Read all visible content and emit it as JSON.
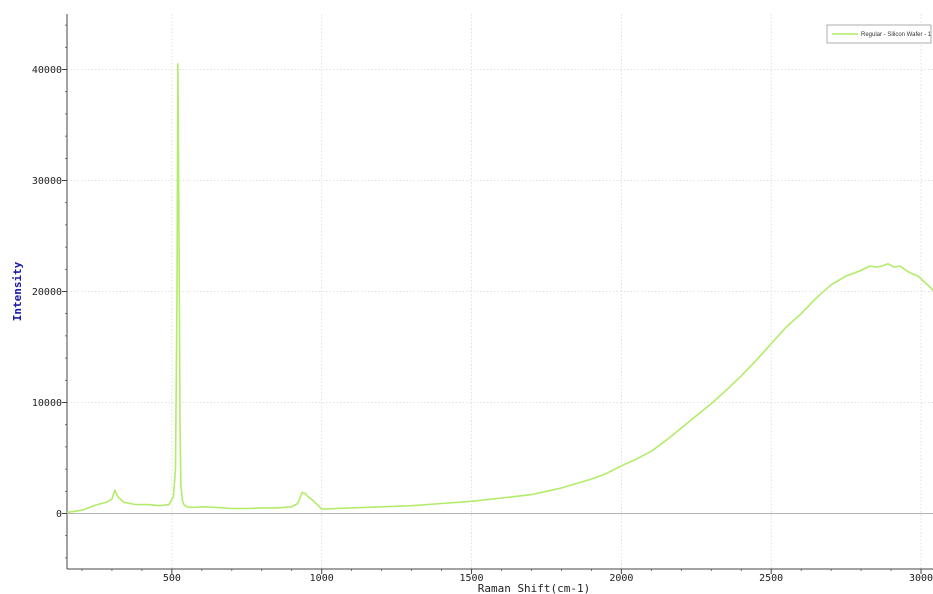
{
  "chart_data": {
    "type": "line",
    "xlabel": "Raman Shift(cm-1)",
    "ylabel": "Intensity",
    "xlim": [
      150,
      3040
    ],
    "ylim": [
      -5000,
      45000
    ],
    "x_ticks": [
      500,
      1000,
      1500,
      2000,
      2500,
      3000
    ],
    "y_ticks": [
      0,
      10000,
      20000,
      30000,
      40000
    ],
    "x_tick_labels": [
      "500",
      "1000",
      "1500",
      "2000",
      "2500",
      "3000"
    ],
    "y_tick_labels": [
      "0",
      "10000",
      "20000",
      "30000",
      "40000"
    ],
    "grid": "horizontal dotted",
    "zero_line": true,
    "legend_position": "top-right",
    "colors": {
      "series": "#b2ec6a",
      "ylabel": "#1a1aa6",
      "grid": "#d8d8d8",
      "axis": "#444444"
    },
    "series": [
      {
        "name": "Regular - Silicon Wafer - 1",
        "x": [
          150,
          200,
          250,
          280,
          300,
          310,
          320,
          340,
          380,
          420,
          460,
          490,
          505,
          512,
          517,
          520,
          523,
          527,
          530,
          535,
          540,
          550,
          570,
          600,
          650,
          700,
          750,
          800,
          850,
          900,
          920,
          935,
          945,
          955,
          970,
          985,
          1000,
          1020,
          1050,
          1100,
          1200,
          1300,
          1400,
          1500,
          1600,
          1700,
          1750,
          1800,
          1850,
          1900,
          1950,
          2000,
          2050,
          2100,
          2150,
          2200,
          2250,
          2300,
          2350,
          2400,
          2450,
          2500,
          2550,
          2600,
          2650,
          2700,
          2750,
          2780,
          2800,
          2830,
          2850,
          2870,
          2890,
          2910,
          2930,
          2950,
          2970,
          2990,
          3010,
          3030,
          3040
        ],
        "y": [
          100,
          300,
          800,
          1000,
          1300,
          2100,
          1500,
          1000,
          800,
          800,
          700,
          800,
          1500,
          4000,
          20000,
          40500,
          28000,
          8000,
          2500,
          1200,
          800,
          600,
          550,
          600,
          550,
          450,
          450,
          500,
          500,
          600,
          900,
          1900,
          1800,
          1500,
          1200,
          800,
          400,
          400,
          450,
          500,
          600,
          700,
          900,
          1100,
          1400,
          1700,
          2000,
          2300,
          2700,
          3100,
          3600,
          4300,
          4900,
          5600,
          6600,
          7700,
          8800,
          9900,
          11100,
          12400,
          13800,
          15300,
          16800,
          18000,
          19400,
          20600,
          21400,
          21700,
          21900,
          22300,
          22200,
          22300,
          22500,
          22200,
          22300,
          21900,
          21600,
          21400,
          20900,
          20400,
          20100
        ]
      }
    ]
  }
}
